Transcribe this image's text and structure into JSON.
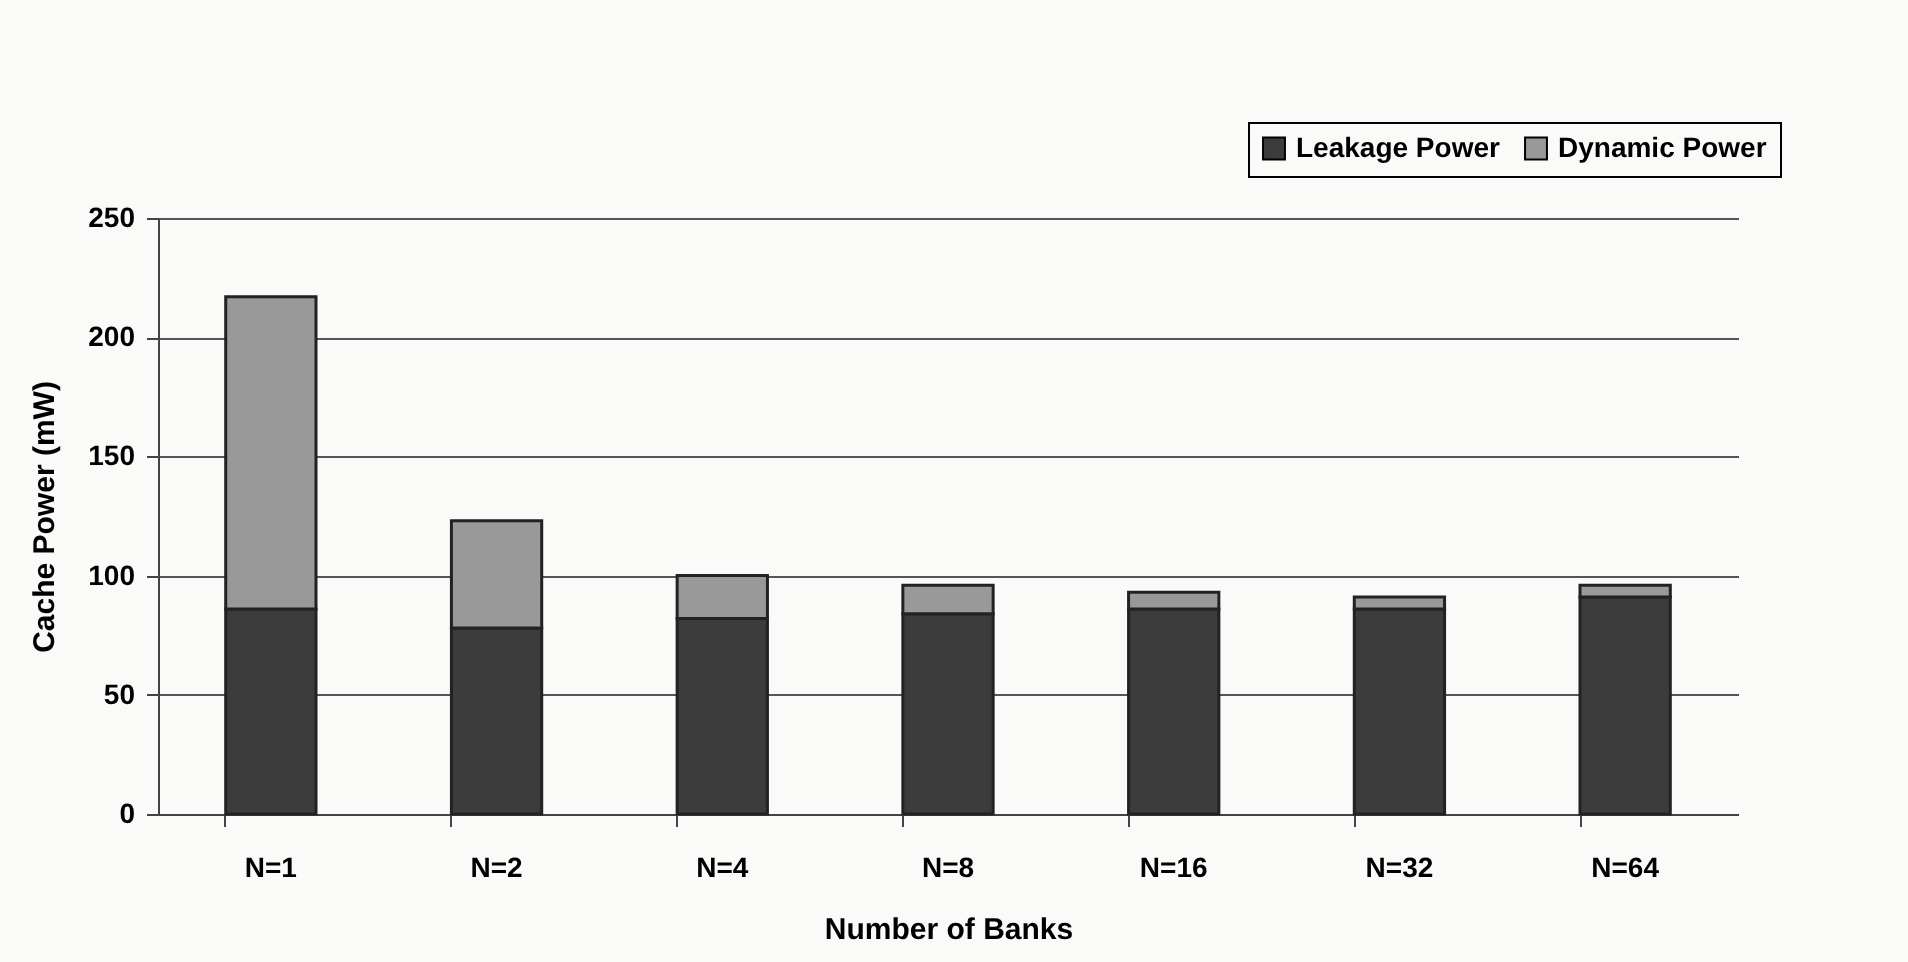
{
  "chart_data": {
    "type": "bar",
    "stacked": true,
    "xlabel": "Number of Banks",
    "ylabel": "Cache Power (mW)",
    "categories": [
      "N=1",
      "N=2",
      "N=4",
      "N=8",
      "N=16",
      "N=32",
      "N=64"
    ],
    "series": [
      {
        "name": "Leakage Power",
        "color": "#3c3c3c",
        "values": [
          86,
          78,
          82,
          84,
          86,
          86,
          91
        ]
      },
      {
        "name": "Dynamic Power",
        "color": "#999999",
        "values": [
          131,
          45,
          18,
          12,
          7,
          5,
          5
        ]
      }
    ],
    "ylim": [
      0,
      250
    ],
    "yticks": [
      0,
      50,
      100,
      150,
      200,
      250
    ],
    "grid": "y",
    "legend": "top right"
  }
}
